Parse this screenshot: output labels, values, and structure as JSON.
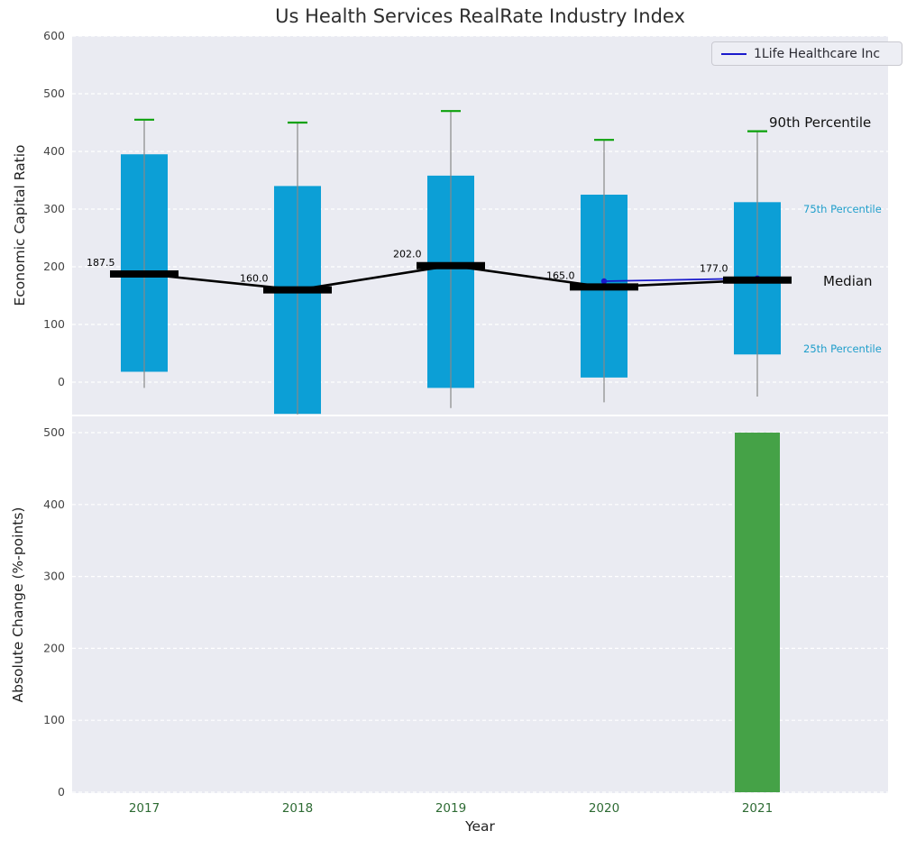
{
  "colors": {
    "panel_background": "#eaebf2",
    "grid": "#ffffff",
    "box_blue": "#0c9fd6",
    "bar_green": "#45a247",
    "cap_green": "#0ba10b",
    "whisker_gray": "#888888",
    "median_black": "#000000",
    "company_blue": "#1a1acc",
    "percentile_label_cyan": "#1f9ecb",
    "x_tick_green": "#2e6b34",
    "y_tick_gray": "#444444"
  },
  "chart_data": [
    {
      "type": "boxplot",
      "title": "Us Health Services RealRate Industry Index",
      "ylabel": "Economic Capital Ratio",
      "ylim": [
        -56,
        600
      ],
      "yticks": [
        0,
        100,
        200,
        300,
        400,
        500,
        600
      ],
      "grid": true,
      "legend_position": "upper right",
      "categories": [
        "2017",
        "2018",
        "2019",
        "2020",
        "2021"
      ],
      "series": [
        {
          "name": "90th percentile",
          "values": [
            455,
            450,
            470,
            420,
            435
          ]
        },
        {
          "name": "75th percentile",
          "values": [
            395,
            340,
            358,
            325,
            312
          ]
        },
        {
          "name": "median",
          "values": [
            187.5,
            160,
            202,
            165,
            177
          ]
        },
        {
          "name": "25th percentile",
          "values": [
            18,
            -55,
            -10,
            8,
            48
          ]
        },
        {
          "name": "whisker low",
          "values": [
            -10,
            -56,
            -45,
            -35,
            -25
          ]
        }
      ],
      "median_labels": [
        "187.5",
        "160.0",
        "202.0",
        "165.0",
        "177.0"
      ],
      "company_line": {
        "name": "1Life Healthcare Inc",
        "x": [
          "2020",
          "2021"
        ],
        "values": [
          175,
          180
        ]
      },
      "annotations": {
        "p90": "90th Percentile",
        "p75": "75th Percentile",
        "median": "Median",
        "p25": "25th Percentile"
      }
    },
    {
      "type": "bar",
      "ylabel": "Absolute Change (%-points)",
      "xlabel": "Year",
      "ylim": [
        0,
        500
      ],
      "yticks": [
        0,
        100,
        200,
        300,
        400,
        500
      ],
      "grid": true,
      "categories": [
        "2017",
        "2018",
        "2019",
        "2020",
        "2021"
      ],
      "values": [
        0,
        0,
        0,
        0,
        500
      ]
    }
  ]
}
